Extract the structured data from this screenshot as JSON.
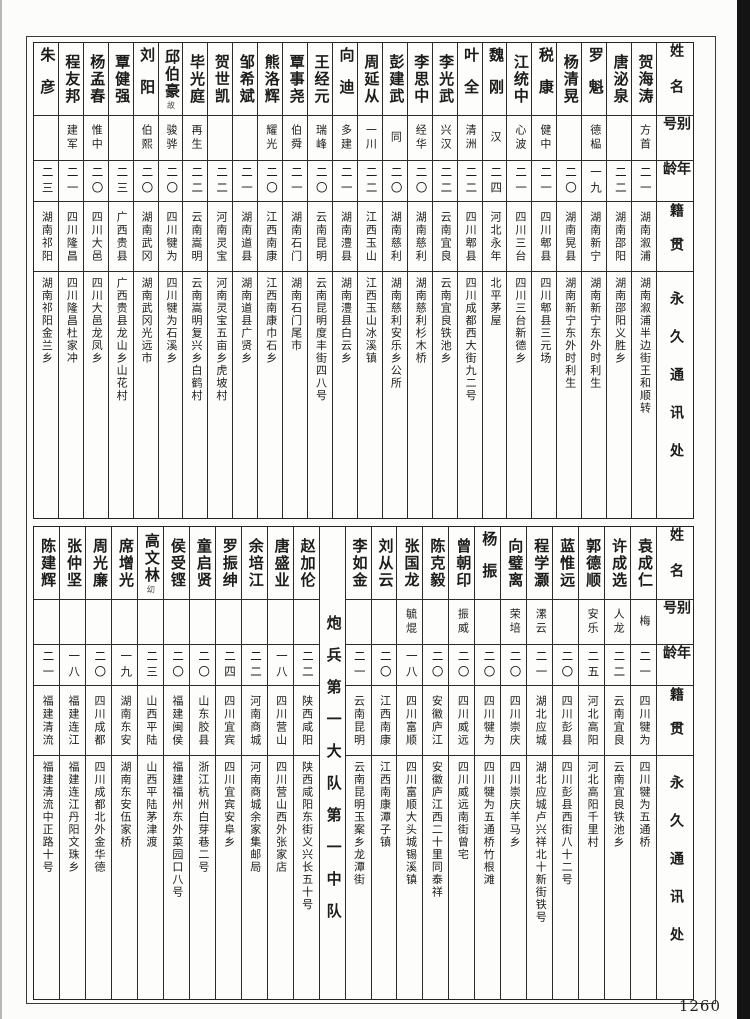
{
  "page_number": "1260",
  "headers": {
    "name": "姓名",
    "alias": "别号",
    "age": "年龄",
    "native": "籍贯",
    "address": "永久通讯处"
  },
  "top_table": {
    "persons": [
      {
        "name": "贺海涛",
        "alias": "方首",
        "age": "二一",
        "native": "湖南溆浦",
        "address": "湖南溆浦半边街王和顺转"
      },
      {
        "name": "唐泌泉",
        "alias": "",
        "age": "二二",
        "native": "湖南邵阳",
        "address": "湖南邵阳义胜乡"
      },
      {
        "name": "罗魁",
        "alias": "德榀",
        "age": "一九",
        "native": "湖南新宁",
        "address": "湖南新宁东外时利生"
      },
      {
        "name": "杨清晃",
        "alias": "",
        "age": "二〇",
        "native": "湖南晃县",
        "address": "湖南新宁东外时利生"
      },
      {
        "name": "税康",
        "alias": "健中",
        "age": "二一",
        "native": "四川郫县",
        "address": "四川郫县三元场"
      },
      {
        "name": "江统中",
        "alias": "心波",
        "age": "二一",
        "native": "四川三台",
        "address": "四川三台新德乡"
      },
      {
        "name": "魏刚",
        "alias": "汉",
        "age": "二四",
        "native": "河北永年",
        "address": "北平茅屋"
      },
      {
        "name": "叶全",
        "alias": "清洲",
        "age": "二二",
        "native": "四川郫县",
        "address": "四川成都西大街九二号"
      },
      {
        "name": "李光武",
        "alias": "兴汉",
        "age": "二二",
        "native": "云南宜良",
        "address": "云南宜良铁池乡"
      },
      {
        "name": "李思中",
        "alias": "经华",
        "age": "二〇",
        "native": "湖南慈利",
        "address": "湖南慈利杉木桥"
      },
      {
        "name": "彭建武",
        "alias": "同",
        "age": "二〇",
        "native": "湖南慈利",
        "address": "湖南慈利安乐乡公所"
      },
      {
        "name": "周延从",
        "alias": "一川",
        "age": "二二",
        "native": "江西玉山",
        "address": "江西玉山冰溪镇"
      },
      {
        "name": "向迪",
        "alias": "多建",
        "age": "二一",
        "native": "湖南澧县",
        "address": "湖南澧县白云乡"
      },
      {
        "name": "王经元",
        "alias": "瑞峰",
        "age": "二〇",
        "native": "云南昆明",
        "address": "云南昆明度丰街四八号"
      },
      {
        "name": "覃事尧",
        "alias": "伯舜",
        "age": "二一",
        "native": "湖南石门",
        "address": "湖南石门尾市"
      },
      {
        "name": "熊洛辉",
        "alias": "耀光",
        "age": "二〇",
        "native": "江西南康",
        "address": "江西南康巾石乡"
      },
      {
        "name": "邹希斌",
        "alias": "",
        "age": "二一",
        "native": "湖南道县",
        "address": "湖南道县广贤乡"
      },
      {
        "name": "贺世凯",
        "alias": "",
        "age": "二二",
        "native": "河南灵宝",
        "address": "河南灵宝五亩乡虎坡村"
      },
      {
        "name": "毕光庭",
        "alias": "再生",
        "age": "二二",
        "native": "云南嵩明",
        "address": "云南嵩明复兴乡白鹤村"
      },
      {
        "name": "邱伯豪",
        "note": "故",
        "alias": "骏骅",
        "age": "二〇",
        "native": "四川犍为",
        "address": "四川犍为石溪乡"
      },
      {
        "name": "刘阳",
        "alias": "伯熙",
        "age": "二〇",
        "native": "湖南武冈",
        "address": "湖南武冈光远市"
      },
      {
        "name": "覃健强",
        "alias": "",
        "age": "二三",
        "native": "广西贵县",
        "address": "广西贵县龙山乡山花村"
      },
      {
        "name": "杨孟春",
        "alias": "惟中",
        "age": "二〇",
        "native": "四川大邑",
        "address": "四川大邑龙凤乡"
      },
      {
        "name": "程友邦",
        "alias": "建军",
        "age": "二一",
        "native": "四川隆昌",
        "address": "四川隆昌杜家冲"
      },
      {
        "name": "朱彦",
        "alias": "",
        "age": "二三",
        "native": "湖南祁阳",
        "address": "湖南祁阳金兰乡"
      }
    ]
  },
  "bottom_table": {
    "section_title": "炮兵第一大队第一中队",
    "right_persons": [
      {
        "name": "袁成仁",
        "alias": "梅",
        "age": "二一",
        "native": "四川犍为",
        "address": "四川犍为五通桥"
      },
      {
        "name": "许成选",
        "alias": "人龙",
        "age": "二二",
        "native": "云南宜良",
        "address": "云南宜良铁池乡"
      },
      {
        "name": "郭德顺",
        "alias": "安乐",
        "age": "二五",
        "native": "河北高阳",
        "address": "河北高阳千里村"
      },
      {
        "name": "蓝惟远",
        "alias": "",
        "age": "二〇",
        "native": "四川彭县",
        "address": "四川彭县西街八十二号"
      },
      {
        "name": "程学灏",
        "alias": "漯云",
        "age": "二一",
        "native": "湖北应城",
        "address": "湖北应城卢兴祥北十新街铁号"
      },
      {
        "name": "向璧离",
        "alias": "荣培",
        "age": "二〇",
        "native": "四川崇庆",
        "address": "四川崇庆羊马乡"
      },
      {
        "name": "杨振",
        "alias": "",
        "age": "二〇",
        "native": "四川犍为",
        "address": "四川犍为五通桥竹根滩"
      },
      {
        "name": "曾朝印",
        "alias": "振威",
        "age": "二〇",
        "native": "四川威远",
        "address": "四川威远南街曾宅"
      },
      {
        "name": "陈克毅",
        "alias": "",
        "age": "二〇",
        "native": "安徽庐江",
        "address": "安徽庐江西二十里同泰祥"
      },
      {
        "name": "张国龙",
        "alias": "毓焜",
        "age": "一八",
        "native": "四川富顺",
        "address": "四川富顺大头城锡溪镇"
      },
      {
        "name": "刘从云",
        "alias": "",
        "age": "二〇",
        "native": "江西南康",
        "address": "江西南康潭子镇"
      },
      {
        "name": "李如金",
        "alias": "",
        "age": "二一",
        "native": "云南昆明",
        "address": "云南昆明玉案乡龙潭街"
      }
    ],
    "left_persons": [
      {
        "name": "赵加伦",
        "alias": "",
        "age": "二二",
        "native": "陕西咸阳",
        "address": "陕西咸阳东街义兴长五十号"
      },
      {
        "name": "唐盛业",
        "alias": "",
        "age": "一八",
        "native": "四川营山",
        "address": "四川营山西外张家店"
      },
      {
        "name": "余培江",
        "alias": "",
        "age": "二二",
        "native": "河南商城",
        "address": "河南商城余家集邮局"
      },
      {
        "name": "罗振绅",
        "alias": "",
        "age": "二四",
        "native": "四川宜宾",
        "address": "四川宜宾安阜乡"
      },
      {
        "name": "童启贤",
        "alias": "",
        "age": "二〇",
        "native": "山东胶县",
        "address": "浙江杭州白芽巷二号"
      },
      {
        "name": "侯受铿",
        "alias": "",
        "age": "二〇",
        "native": "福建闽侯",
        "address": "福建福州东外菜园口八号"
      },
      {
        "name": "高文林",
        "note": "㓜",
        "alias": "",
        "age": "二三",
        "native": "山西平陆",
        "address": "山西平陆茅津渡"
      },
      {
        "name": "席增光",
        "alias": "",
        "age": "一九",
        "native": "湖南东安",
        "address": "湖南东安伍家桥"
      },
      {
        "name": "周光廉",
        "alias": "",
        "age": "二〇",
        "native": "四川成都",
        "address": "四川成都北外金华德"
      },
      {
        "name": "张仲坚",
        "alias": "",
        "age": "一八",
        "native": "福建连江",
        "address": "福建连江丹阳文珠乡"
      },
      {
        "name": "陈建辉",
        "alias": "",
        "age": "二一",
        "native": "福建清流",
        "address": "福建清流中正路十号"
      }
    ]
  }
}
